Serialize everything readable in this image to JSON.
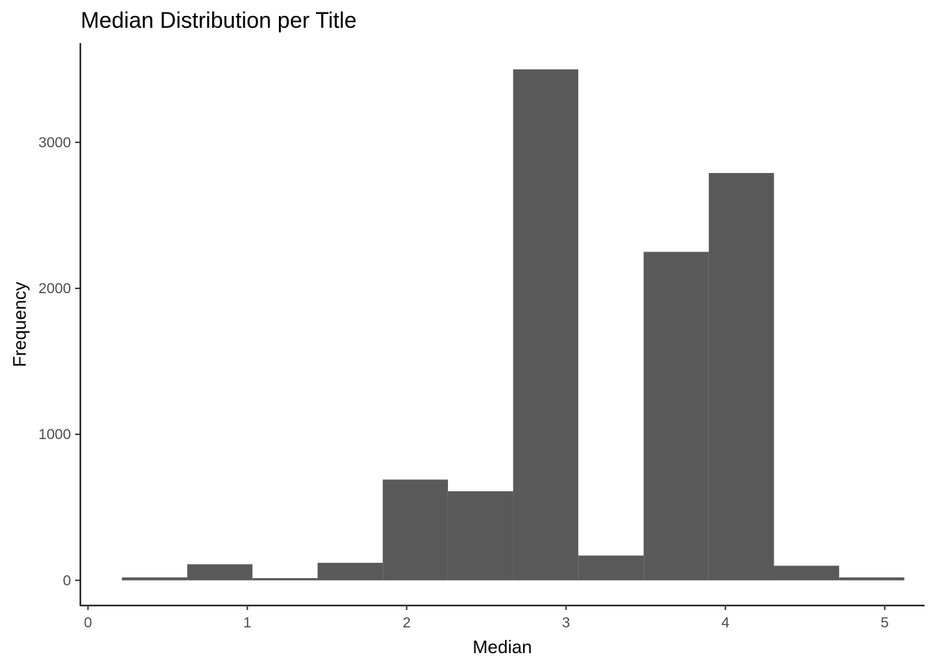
{
  "chart_data": {
    "type": "histogram",
    "title": "Median Distribution per Title",
    "xlabel": "Median",
    "ylabel": "Frequency",
    "xlim": [
      -0.05,
      5.25
    ],
    "ylim": [
      -170,
      3680
    ],
    "x_ticks": [
      0,
      1,
      2,
      3,
      4,
      5
    ],
    "y_ticks": [
      0,
      1000,
      2000,
      3000
    ],
    "bin_width": 0.409,
    "bins": [
      {
        "x0": 0.213,
        "x1": 0.623,
        "count": 20
      },
      {
        "x0": 0.623,
        "x1": 1.032,
        "count": 110
      },
      {
        "x0": 1.032,
        "x1": 1.441,
        "count": 15
      },
      {
        "x0": 1.441,
        "x1": 1.85,
        "count": 120
      },
      {
        "x0": 1.85,
        "x1": 2.259,
        "count": 690
      },
      {
        "x0": 2.259,
        "x1": 2.668,
        "count": 610
      },
      {
        "x0": 2.668,
        "x1": 3.077,
        "count": 3500
      },
      {
        "x0": 3.077,
        "x1": 3.487,
        "count": 170
      },
      {
        "x0": 3.487,
        "x1": 3.896,
        "count": 2250
      },
      {
        "x0": 3.896,
        "x1": 4.305,
        "count": 2790
      },
      {
        "x0": 4.305,
        "x1": 4.714,
        "count": 100
      },
      {
        "x0": 4.714,
        "x1": 5.123,
        "count": 20
      }
    ],
    "bar_color": "#595959",
    "grid": false,
    "legend": "none"
  }
}
